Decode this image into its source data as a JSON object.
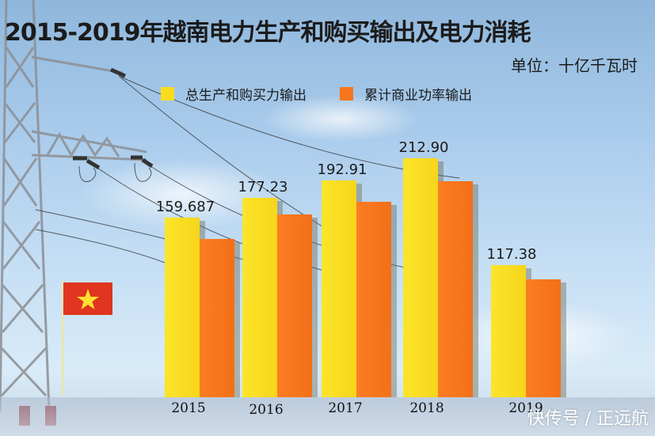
{
  "title": "2015-2019年越南电力生产和购买输出及电力消耗",
  "unit": "单位：十亿千瓦时",
  "legend": [
    {
      "label": "总生产和购买力输出",
      "color": "#f9dc1f"
    },
    {
      "label": "累计商业功率输出",
      "color": "#f7761d"
    }
  ],
  "watermark": "快传号 / 正远航",
  "chart_data": {
    "type": "bar",
    "title": "2015-2019年越南电力生产和购买输出及电力消耗",
    "subtitle": "单位：十亿千瓦时",
    "xlabel": "",
    "ylabel": "十亿千瓦时",
    "categories": [
      "2015",
      "2016",
      "2017",
      "2018",
      "2019"
    ],
    "series": [
      {
        "name": "总生产和购买力输出",
        "color": "#f9dc1f",
        "values": [
          159.687,
          177.23,
          192.91,
          212.9,
          117.38
        ],
        "labels": [
          "159.687",
          "177.23",
          "192.91",
          "212.90",
          "117.38"
        ]
      },
      {
        "name": "累计商业功率输出",
        "color": "#f7761d",
        "values": [
          141,
          163,
          174,
          192,
          105
        ],
        "labels": [
          "",
          "",
          "",
          "",
          ""
        ]
      }
    ],
    "grid": false,
    "legend_position": "top",
    "ylim": [
      0,
      230
    ]
  }
}
